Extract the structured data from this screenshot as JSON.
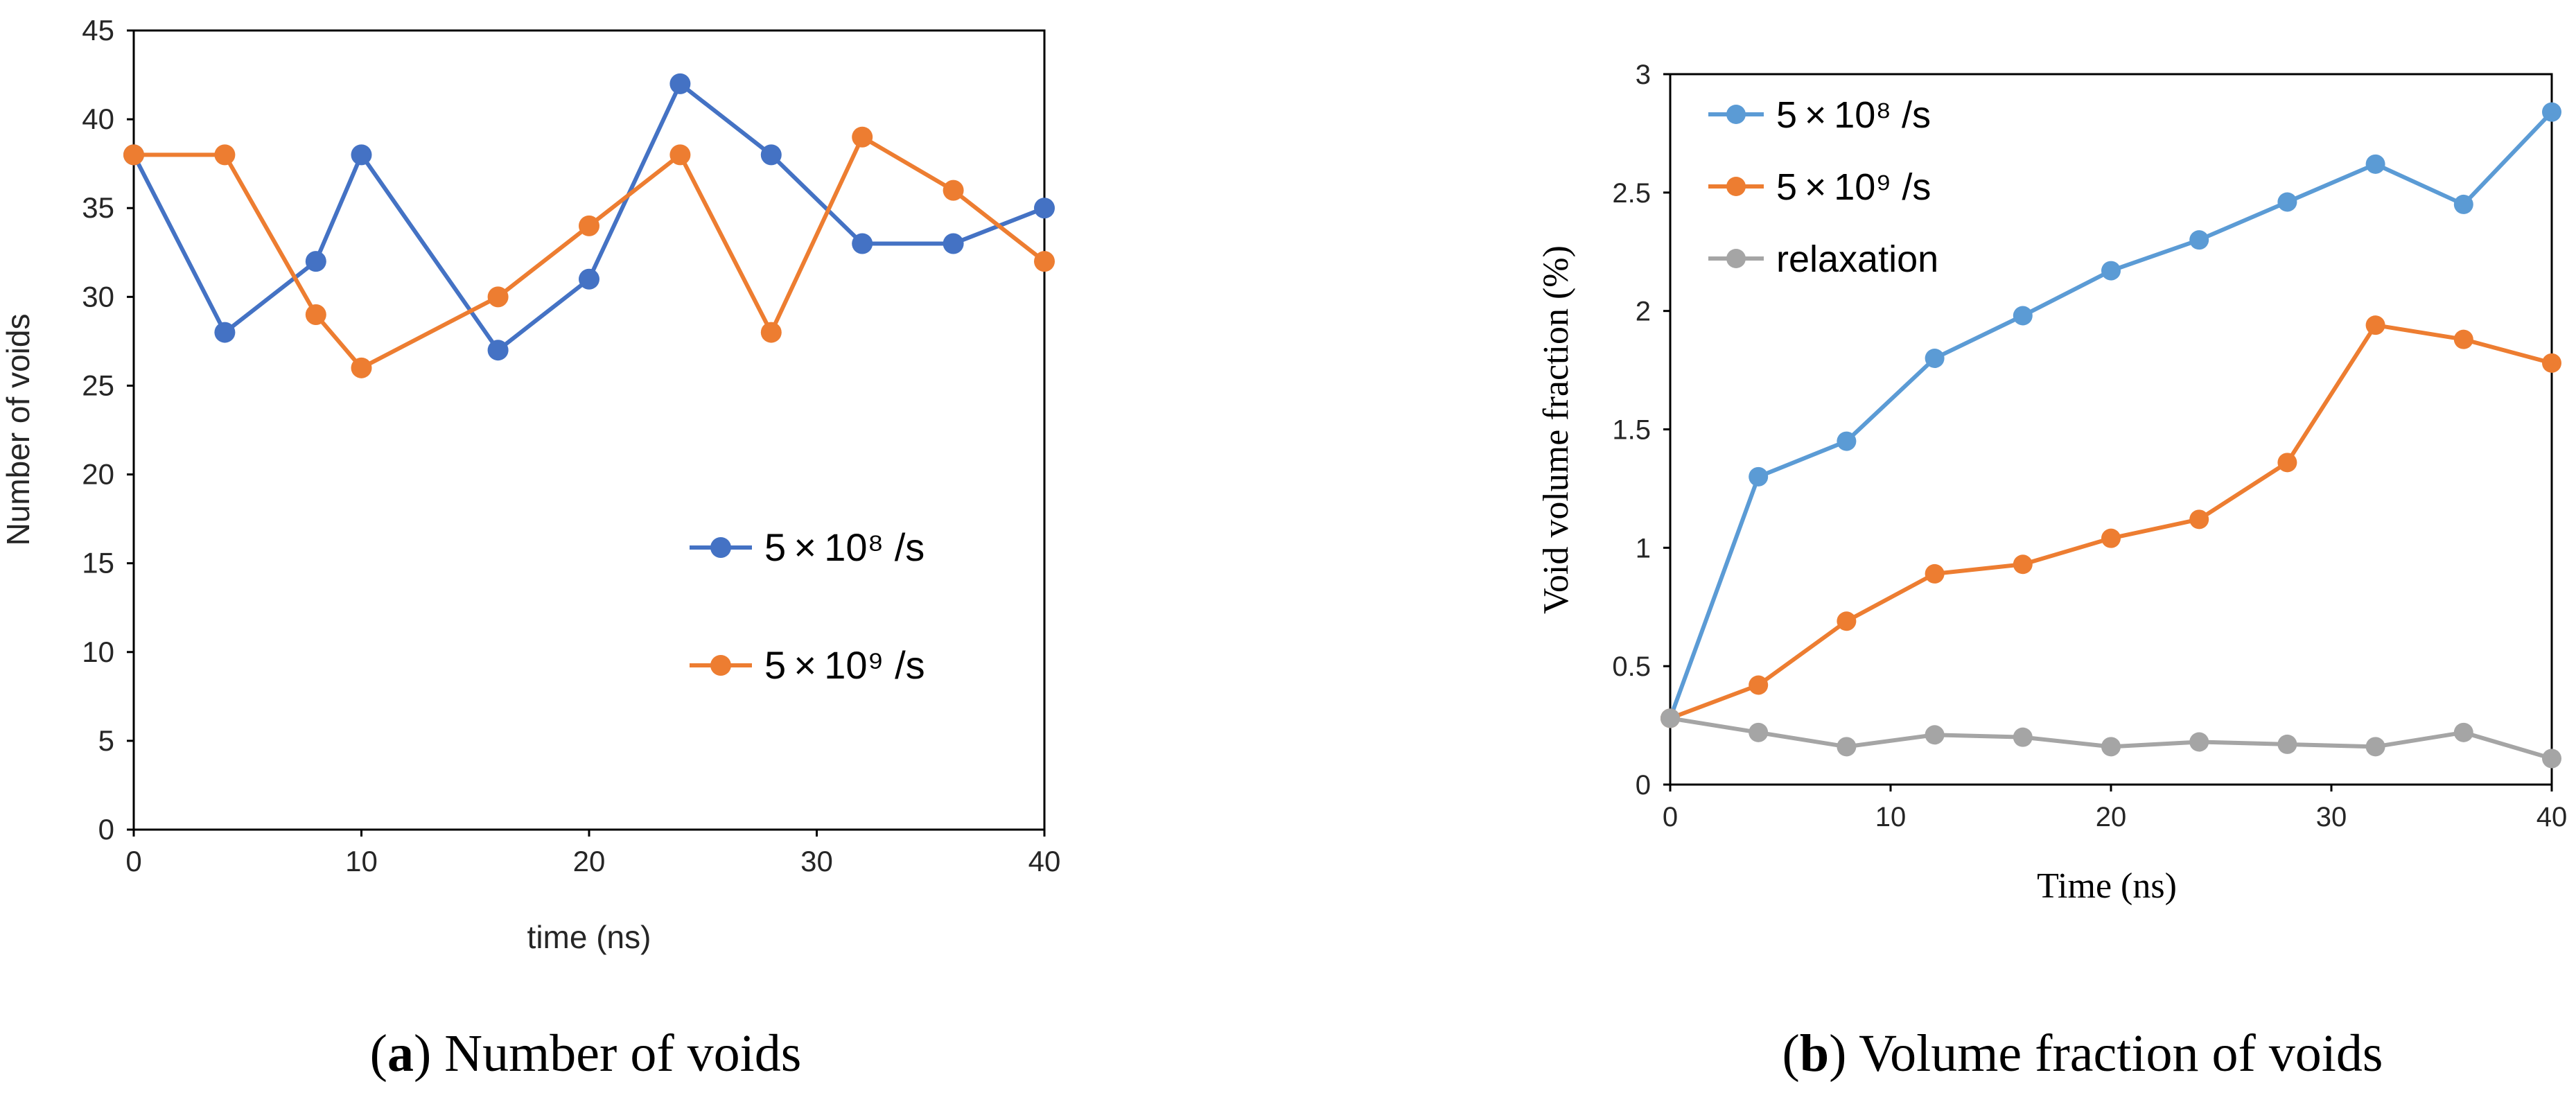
{
  "chart_data": [
    {
      "type": "line",
      "xlabel": "time (ns)",
      "ylabel": "Number of voids",
      "xlim": [
        0,
        40
      ],
      "ylim": [
        0,
        45
      ],
      "xticks": [
        0,
        10,
        20,
        30,
        40
      ],
      "yticks": [
        0,
        5,
        10,
        15,
        20,
        25,
        30,
        35,
        40,
        45
      ],
      "legend_position": "center-right",
      "caption_letter": "a",
      "caption_text": "Number of voids",
      "series": [
        {
          "name": "5 × 10⁸ /s",
          "color": "#4472c4",
          "x": [
            0,
            4,
            8,
            10,
            16,
            20,
            24,
            28,
            32,
            36,
            40
          ],
          "values": [
            38,
            28,
            32,
            38,
            27,
            31,
            42,
            38,
            33,
            33,
            35
          ]
        },
        {
          "name": "5 × 10⁹ /s",
          "color": "#ed7d31",
          "x": [
            0,
            4,
            8,
            10,
            16,
            20,
            24,
            28,
            32,
            36,
            40
          ],
          "values": [
            38,
            38,
            29,
            26,
            30,
            34,
            38,
            28,
            39,
            36,
            32
          ]
        }
      ]
    },
    {
      "type": "line",
      "xlabel": "Time (ns)",
      "ylabel": "Void volume fraction (%)",
      "xlim": [
        0,
        40
      ],
      "ylim": [
        0,
        3
      ],
      "xticks": [
        0,
        10,
        20,
        30,
        40
      ],
      "yticks": [
        0,
        0.5,
        1,
        1.5,
        2,
        2.5,
        3
      ],
      "legend_position": "top-left",
      "caption_letter": "b",
      "caption_text": "Volume fraction of voids",
      "series": [
        {
          "name": "5 × 10⁸ /s",
          "color": "#5b9bd5",
          "x": [
            0,
            4,
            8,
            12,
            16,
            20,
            24,
            28,
            32,
            36,
            40
          ],
          "values": [
            0.28,
            1.3,
            1.45,
            1.8,
            1.98,
            2.17,
            2.3,
            2.46,
            2.62,
            2.45,
            2.84
          ]
        },
        {
          "name": "5 × 10⁹ /s",
          "color": "#ed7d31",
          "x": [
            0,
            4,
            8,
            12,
            16,
            20,
            24,
            28,
            32,
            36,
            40
          ],
          "values": [
            0.28,
            0.42,
            0.69,
            0.89,
            0.93,
            1.04,
            1.12,
            1.36,
            1.94,
            1.88,
            1.78
          ]
        },
        {
          "name": "relaxation",
          "color": "#a5a5a5",
          "x": [
            0,
            4,
            8,
            12,
            16,
            20,
            24,
            28,
            32,
            36,
            40
          ],
          "values": [
            0.28,
            0.22,
            0.16,
            0.21,
            0.2,
            0.16,
            0.18,
            0.17,
            0.16,
            0.22,
            0.11
          ]
        }
      ]
    }
  ]
}
